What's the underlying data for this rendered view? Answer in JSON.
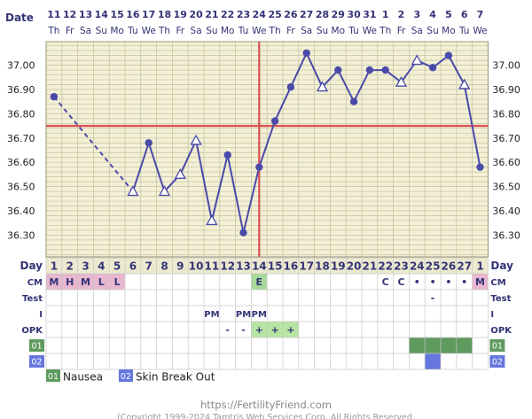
{
  "chart_data": {
    "type": "line",
    "row_labels": {
      "date": "Date",
      "day": "Day",
      "cm": "CM",
      "test": "Test",
      "intercourse": "I",
      "opk": "OPK",
      "s1": "01",
      "s2": "02"
    },
    "date_numbers": [
      "11",
      "12",
      "13",
      "14",
      "15",
      "16",
      "17",
      "18",
      "19",
      "20",
      "21",
      "22",
      "23",
      "24",
      "25",
      "26",
      "27",
      "28",
      "29",
      "30",
      "31",
      "1",
      "2",
      "3",
      "4",
      "5",
      "6",
      "7"
    ],
    "weekdays": [
      "Th",
      "Fr",
      "Sa",
      "Su",
      "Mo",
      "Tu",
      "We",
      "Th",
      "Fr",
      "Sa",
      "Su",
      "Mo",
      "Tu",
      "We",
      "Th",
      "Fr",
      "Sa",
      "Su",
      "Mo",
      "Tu",
      "We",
      "Th",
      "Fr",
      "Sa",
      "Su",
      "Mo",
      "Tu",
      "We"
    ],
    "cycle_days": [
      "1",
      "2",
      "3",
      "4",
      "5",
      "6",
      "7",
      "8",
      "9",
      "10",
      "11",
      "12",
      "13",
      "14",
      "15",
      "16",
      "17",
      "18",
      "19",
      "20",
      "21",
      "22",
      "23",
      "24",
      "25",
      "26",
      "27",
      "1"
    ],
    "y_ticks": [
      "37.00",
      "36.90",
      "36.80",
      "36.70",
      "36.60",
      "36.50",
      "36.40",
      "36.30"
    ],
    "ylim": [
      36.22,
      37.09
    ],
    "temps": [
      36.87,
      null,
      null,
      null,
      null,
      36.48,
      36.68,
      36.48,
      36.55,
      36.69,
      36.36,
      36.63,
      36.31,
      36.58,
      36.77,
      36.91,
      37.05,
      36.91,
      36.98,
      36.85,
      36.98,
      36.98,
      36.93,
      37.02,
      36.99,
      37.04,
      36.92,
      36.58
    ],
    "open_markers": [
      5,
      7,
      8,
      9,
      10,
      17,
      22,
      23,
      26
    ],
    "dashed_segment": [
      0,
      5
    ],
    "coverline": 36.75,
    "ovulation_index": 13,
    "cm": [
      "M",
      "H",
      "M",
      "L",
      "L",
      "",
      "",
      "",
      "",
      "",
      "",
      "",
      "",
      "E",
      "",
      "",
      "",
      "",
      "",
      "",
      "",
      "C",
      "C",
      "•",
      "•",
      "•",
      "•",
      "M"
    ],
    "test": [
      "",
      "",
      "",
      "",
      "",
      "",
      "",
      "",
      "",
      "",
      "",
      "",
      "",
      "",
      "",
      "",
      "",
      "",
      "",
      "",
      "",
      "",
      "",
      "",
      "-",
      "",
      "",
      ""
    ],
    "intercourse": [
      "",
      "",
      "",
      "",
      "",
      "",
      "",
      "",
      "",
      "",
      "PM",
      "",
      "PM",
      "PM",
      "",
      "",
      "",
      "",
      "",
      "",
      "",
      "",
      "",
      "",
      "",
      "",
      "",
      ""
    ],
    "opk": [
      "",
      "",
      "",
      "",
      "",
      "",
      "",
      "",
      "",
      "",
      "",
      "-",
      "-",
      "+",
      "+",
      "+",
      "",
      "",
      "",
      "",
      "",
      "",
      "",
      "",
      "",
      "",
      "",
      ""
    ],
    "symptom1_days": [
      23,
      24,
      25,
      26
    ],
    "symptom2_days": [
      24
    ],
    "legend": [
      {
        "code": "01",
        "name": "Nausea",
        "color": "#5f9a5f"
      },
      {
        "code": "02",
        "name": "Skin Break Out",
        "color": "#6677dd"
      }
    ],
    "footer_url": "https://FertilityFriend.com",
    "footer_copy": "(Copyright 1999-2024 Tamtris Web Services Corp. All Rights Reserved."
  }
}
